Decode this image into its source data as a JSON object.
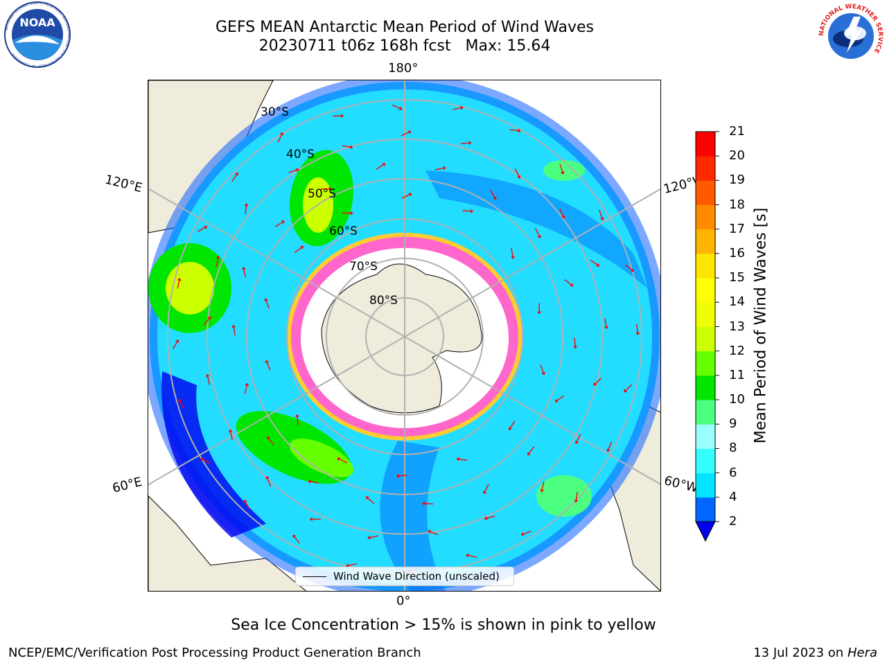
{
  "title": {
    "line1": "GEFS MEAN Antarctic Mean Period of Wind Waves",
    "line2": "20230711 t06z 168h fcst   Max: 15.64"
  },
  "logos": {
    "noaa_text": "NOAA",
    "noaa_ring": "NATIONAL OCEANIC AND ATMOSPHERIC ADMINISTRATION · U.S. DEPARTMENT OF COMMERCE",
    "nws_ring": "NATIONAL WEATHER SERVICE"
  },
  "map": {
    "projection": "south-polar-stereographic",
    "longitude_labels": {
      "top": "180°",
      "bottom": "0°",
      "upper_left": "120°E",
      "lower_left": "60°E",
      "upper_right": "120°W",
      "lower_right": "60°W"
    },
    "latitude_labels": [
      "30°S",
      "40°S",
      "50°S",
      "60°S",
      "70°S",
      "80°S"
    ],
    "colors": {
      "land": "#efecdc",
      "ice": "#ff66cc",
      "ice_edge": "#ffcc33",
      "arrow": "#ff0000",
      "grid": "#b0b0b0"
    }
  },
  "colorbar": {
    "label": "Mean Period of Wind Waves [s]",
    "ticks": [
      "21",
      "20",
      "19",
      "18",
      "17",
      "16",
      "15",
      "14",
      "13",
      "12",
      "11",
      "10",
      "9",
      "8",
      "6",
      "4",
      "2"
    ],
    "colors": [
      "#0000f0",
      "#0066ff",
      "#00e4ff",
      "#33ffff",
      "#99ffff",
      "#4cff80",
      "#00e600",
      "#66ff00",
      "#ccff00",
      "#eeff00",
      "#ffff00",
      "#ffe600",
      "#ffb400",
      "#ff8c00",
      "#ff5a00",
      "#ff2800",
      "#ff0000"
    ]
  },
  "legend": {
    "label": "Wind Wave Direction (unscaled)"
  },
  "caption": "Sea Ice Concentration > 15% is shown in pink to yellow",
  "footer": {
    "left": "NCEP/EMC/Verification Post Processing Product Generation Branch",
    "date": "13 Jul 2023 on ",
    "host": "Hera"
  }
}
